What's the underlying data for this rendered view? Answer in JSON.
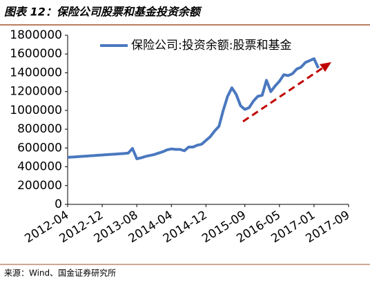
{
  "chart_data": {
    "type": "line",
    "title": "图表 12：保险公司股票和基金投资余额",
    "source": "来源：Wind、国金证券研究所",
    "x": [
      "2012-04",
      "2012-05",
      "2012-06",
      "2012-07",
      "2012-08",
      "2012-09",
      "2012-10",
      "2012-11",
      "2012-12",
      "2013-01",
      "2013-02",
      "2013-03",
      "2013-04",
      "2013-05",
      "2013-06",
      "2013-07",
      "2013-08",
      "2013-09",
      "2013-10",
      "2013-11",
      "2013-12",
      "2014-01",
      "2014-02",
      "2014-03",
      "2014-04",
      "2014-05",
      "2014-06",
      "2014-07",
      "2014-08",
      "2014-09",
      "2014-10",
      "2014-11",
      "2014-12",
      "2015-01",
      "2015-02",
      "2015-03",
      "2015-04",
      "2015-05",
      "2015-06",
      "2015-07",
      "2015-08",
      "2015-09",
      "2015-10",
      "2015-11",
      "2015-12",
      "2016-01",
      "2016-02",
      "2016-03",
      "2016-04",
      "2016-05",
      "2016-06",
      "2016-07",
      "2016-08",
      "2016-09",
      "2016-10",
      "2016-11",
      "2016-12",
      "2017-01",
      "2017-02"
    ],
    "series": [
      {
        "name": "保险公司:投资余额:股票和基金",
        "color": "#4a78bf",
        "values": [
          500000,
          503000,
          506000,
          510000,
          513000,
          516000,
          519000,
          522000,
          525000,
          529000,
          532000,
          535000,
          538000,
          541000,
          545000,
          595000,
          485000,
          495000,
          510000,
          520000,
          530000,
          545000,
          560000,
          580000,
          590000,
          585000,
          585000,
          570000,
          610000,
          610000,
          630000,
          640000,
          680000,
          720000,
          780000,
          830000,
          1000000,
          1150000,
          1240000,
          1170000,
          1050000,
          1010000,
          1030000,
          1100000,
          1150000,
          1160000,
          1320000,
          1200000,
          1260000,
          1310000,
          1380000,
          1370000,
          1390000,
          1440000,
          1460000,
          1510000,
          1530000,
          1550000,
          1450000
        ]
      }
    ],
    "xlim": [
      "2012-04",
      "2017-09"
    ],
    "xticks": [
      "2012-04",
      "2012-12",
      "2013-08",
      "2014-04",
      "2014-12",
      "2015-09",
      "2016-05",
      "2017-01",
      "2017-09"
    ],
    "ylim": [
      0,
      1800000
    ],
    "yticks": [
      0,
      200000,
      400000,
      600000,
      800000,
      1000000,
      1200000,
      1400000,
      1600000,
      1800000
    ],
    "grid": false
  }
}
